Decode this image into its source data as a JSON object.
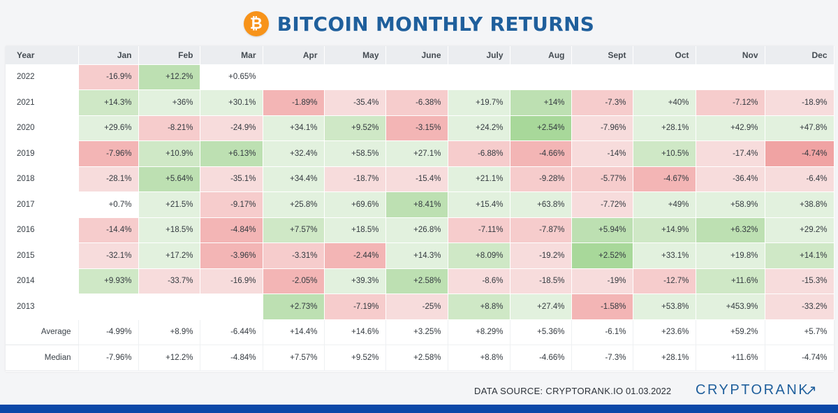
{
  "header": {
    "logo_symbol": "₿",
    "title": "BITCOIN MONTHLY RETURNS"
  },
  "chart_data": {
    "type": "table",
    "title": "BITCOIN MONTHLY RETURNS",
    "columns": [
      "Year",
      "Jan",
      "Feb",
      "Mar",
      "Apr",
      "May",
      "June",
      "July",
      "Aug",
      "Sept",
      "Oct",
      "Nov",
      "Dec"
    ],
    "rows": [
      {
        "label": "2022",
        "values": [
          "-16.9%",
          "+12.2%",
          "+0.65%",
          "",
          "",
          "",
          "",
          "",
          "",
          "",
          "",
          ""
        ]
      },
      {
        "label": "2021",
        "values": [
          "+14.3%",
          "+36%",
          "+30.1%",
          "-1.89%",
          "-35.4%",
          "-6.38%",
          "+19.7%",
          "+14%",
          "-7.3%",
          "+40%",
          "-7.12%",
          "-18.9%"
        ]
      },
      {
        "label": "2020",
        "values": [
          "+29.6%",
          "-8.21%",
          "-24.9%",
          "+34.1%",
          "+9.52%",
          "-3.15%",
          "+24.2%",
          "+2.54%",
          "-7.96%",
          "+28.1%",
          "+42.9%",
          "+47.8%"
        ]
      },
      {
        "label": "2019",
        "values": [
          "-7.96%",
          "+10.9%",
          "+6.13%",
          "+32.4%",
          "+58.5%",
          "+27.1%",
          "-6.88%",
          "-4.66%",
          "-14%",
          "+10.5%",
          "-17.4%",
          "-4.74%"
        ]
      },
      {
        "label": "2018",
        "values": [
          "-28.1%",
          "+5.64%",
          "-35.1%",
          "+34.4%",
          "-18.7%",
          "-15.4%",
          "+21.1%",
          "-9.28%",
          "-5.77%",
          "-4.67%",
          "-36.4%",
          "-6.4%"
        ]
      },
      {
        "label": "2017",
        "values": [
          "+0.7%",
          "+21.5%",
          "-9.17%",
          "+25.8%",
          "+69.6%",
          "+8.41%",
          "+15.4%",
          "+63.8%",
          "-7.72%",
          "+49%",
          "+58.9%",
          "+38.8%"
        ]
      },
      {
        "label": "2016",
        "values": [
          "-14.4%",
          "+18.5%",
          "-4.84%",
          "+7.57%",
          "+18.5%",
          "+26.8%",
          "-7.11%",
          "-7.87%",
          "+5.94%",
          "+14.9%",
          "+6.32%",
          "+29.2%"
        ]
      },
      {
        "label": "2015",
        "values": [
          "-32.1%",
          "+17.2%",
          "-3.96%",
          "-3.31%",
          "-2.44%",
          "+14.3%",
          "+8.09%",
          "-19.2%",
          "+2.52%",
          "+33.1%",
          "+19.8%",
          "+14.1%"
        ]
      },
      {
        "label": "2014",
        "values": [
          "+9.93%",
          "-33.7%",
          "-16.9%",
          "-2.05%",
          "+39.3%",
          "+2.58%",
          "-8.6%",
          "-18.5%",
          "-19%",
          "-12.7%",
          "+11.6%",
          "-15.3%"
        ]
      },
      {
        "label": "2013",
        "values": [
          "",
          "",
          "",
          "+2.73%",
          "-7.19%",
          "-25%",
          "+8.8%",
          "+27.4%",
          "-1.58%",
          "+53.8%",
          "+453.9%",
          "-33.2%"
        ]
      }
    ],
    "shades": [
      [
        "r2",
        "g3",
        "w",
        "",
        "",
        "",
        "",
        "",
        "",
        "",
        "",
        ""
      ],
      [
        "g2",
        "g1",
        "g1",
        "r3",
        "r1",
        "r2",
        "g1",
        "g3",
        "r2",
        "g1",
        "r2",
        "r1"
      ],
      [
        "g1",
        "r2",
        "r1",
        "g1",
        "g2",
        "r3",
        "g1",
        "g4",
        "r1",
        "g1",
        "g1",
        "g1"
      ],
      [
        "r3",
        "g2",
        "g3",
        "g1",
        "g1",
        "g1",
        "r2",
        "r3",
        "r1",
        "g2",
        "r1",
        "r4"
      ],
      [
        "r1",
        "g3",
        "r1",
        "g1",
        "r1",
        "r1",
        "g1",
        "r2",
        "r2",
        "r3",
        "r1",
        "r1"
      ],
      [
        "w",
        "g1",
        "r2",
        "g1",
        "g1",
        "g3",
        "g1",
        "g1",
        "r1",
        "g1",
        "g1",
        "g1"
      ],
      [
        "r2",
        "g1",
        "r3",
        "g2",
        "g1",
        "g1",
        "r2",
        "r2",
        "g3",
        "g2",
        "g3",
        "g1"
      ],
      [
        "r1",
        "g1",
        "r3",
        "r2",
        "r3",
        "g1",
        "g2",
        "r1",
        "g4",
        "g1",
        "g1",
        "g2"
      ],
      [
        "g2",
        "r1",
        "r1",
        "r3",
        "g1",
        "g3",
        "r1",
        "r1",
        "r1",
        "r2",
        "g2",
        "r1"
      ],
      [
        "",
        "",
        "",
        "g3",
        "r2",
        "r1",
        "g2",
        "g1",
        "r3",
        "g1",
        "g1",
        "r1"
      ]
    ],
    "summary_rows": [
      {
        "label": "Average",
        "values": [
          "-4.99%",
          "+8.9%",
          "-6.44%",
          "+14.4%",
          "+14.6%",
          "+3.25%",
          "+8.29%",
          "+5.36%",
          "-6.1%",
          "+23.6%",
          "+59.2%",
          "+5.7%"
        ]
      },
      {
        "label": "Median",
        "values": [
          "-7.96%",
          "+12.2%",
          "-4.84%",
          "+7.57%",
          "+9.52%",
          "+2.58%",
          "+8.8%",
          "-4.66%",
          "-7.3%",
          "+28.1%",
          "+11.6%",
          "-4.74%"
        ]
      }
    ],
    "colors": {
      "g1": "#e2f1de",
      "g2": "#cfe8c6",
      "g3": "#bde0b2",
      "g4": "#a8d89a",
      "r1": "#f7dcdc",
      "r2": "#f6cccc",
      "r3": "#f3b5b5",
      "r4": "#f0a3a3",
      "w": "#ffffff"
    }
  },
  "footer": {
    "source": "DATA SOURCE: CRYPTORANK.IO",
    "date": "01.03.2022",
    "brand": "CRYPTORANK",
    "brand_arrow": "↗"
  },
  "theme": {
    "title_color": "#1f5f9c",
    "bitcoin_orange": "#f7931a",
    "bottom_bar": "#0c48a8"
  }
}
